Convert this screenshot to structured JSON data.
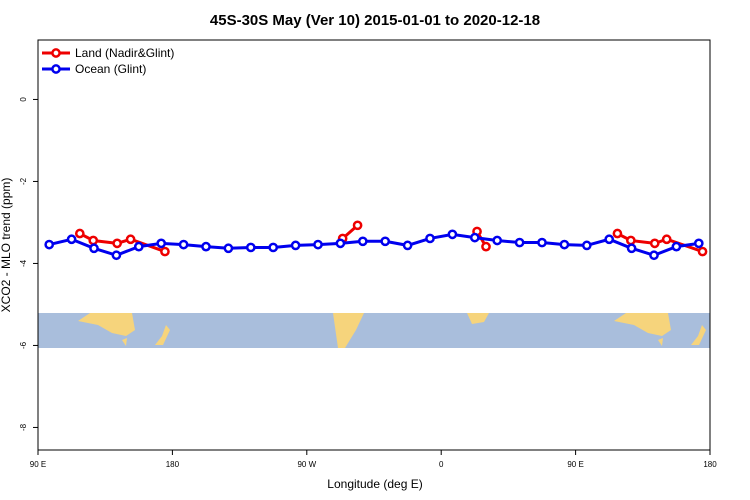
{
  "chart_data": {
    "type": "line",
    "title": "45S-30S May (Ver 10)   2015-01-01 to 2020-12-18",
    "xlabel": "Longitude (deg E)",
    "ylabel": "XCO2 - MLO trend (ppm)",
    "xlim": [
      90,
      540
    ],
    "xticks": [
      {
        "value": 90,
        "label": "90 E"
      },
      180,
      {
        "value": 270,
        "label": "90 W"
      },
      {
        "value": 360,
        "label": "0"
      },
      {
        "value": 450,
        "label": "90 E"
      },
      {
        "value": 540,
        "label": "180"
      }
    ],
    "ylim": [
      -8.55,
      1.45
    ],
    "yticks": [
      0,
      -2,
      -4,
      -6,
      -8
    ],
    "legend": "upper left",
    "series": [
      {
        "name": "Land (Nadir&Glint)",
        "color": "#ee0000",
        "x": [
          118,
          127,
          143,
          152,
          175,
          null,
          294,
          304,
          null,
          384,
          390,
          null,
          478,
          487,
          503,
          511,
          535
        ],
        "values": [
          -3.27,
          -3.44,
          -3.51,
          -3.41,
          -3.71,
          null,
          -3.39,
          -3.07,
          null,
          -3.22,
          -3.59,
          null,
          -3.27,
          -3.44,
          -3.51,
          -3.41,
          -3.71
        ]
      },
      {
        "name": "Ocean (Glint)",
        "color": "#0000ee",
        "x": [
          97.5,
          112.5,
          127.5,
          142.5,
          157.5,
          172.5,
          187.5,
          202.5,
          217.5,
          232.5,
          247.5,
          262.5,
          277.5,
          292.5,
          307.5,
          322.5,
          337.5,
          352.5,
          367.5,
          382.5,
          397.5,
          412.5,
          427.5,
          442.5,
          457.5,
          472.5,
          487.5,
          502.5,
          517.5,
          532.5
        ],
        "values": [
          -3.54,
          -3.41,
          -3.63,
          -3.8,
          -3.59,
          -3.51,
          -3.54,
          -3.59,
          -3.63,
          -3.61,
          -3.61,
          -3.56,
          -3.54,
          -3.51,
          -3.46,
          -3.46,
          -3.56,
          -3.39,
          -3.29,
          -3.37,
          -3.44,
          -3.49,
          -3.49,
          -3.54,
          -3.56,
          -3.41,
          -3.63,
          -3.8,
          -3.59,
          -3.51
        ]
      }
    ]
  }
}
